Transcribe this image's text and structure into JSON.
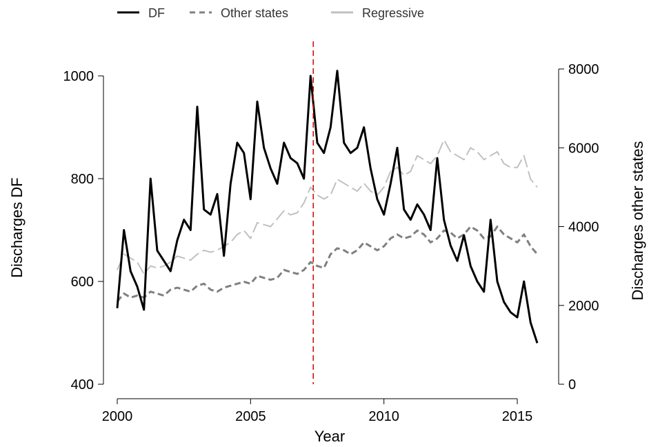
{
  "chart_data": {
    "type": "line",
    "xlabel": "Year",
    "ylabel_left": "Discharges DF",
    "ylabel_right": "Discharges other states",
    "xlim": [
      2000,
      2016
    ],
    "ylim_left": [
      400,
      1000
    ],
    "ylim_right": [
      0,
      8000
    ],
    "x_ticks": [
      2000,
      2005,
      2010,
      2015
    ],
    "y_left_ticks": [
      400,
      600,
      800,
      1000
    ],
    "y_right_ticks": [
      0,
      2000,
      4000,
      6000,
      8000
    ],
    "vertical_line": {
      "x": 2007.35,
      "color": "#cc0000",
      "style": "dashed"
    },
    "grid": false,
    "legend_position": "top",
    "series": [
      {
        "name": "DF",
        "axis": "left",
        "color": "#000000",
        "style": "solid",
        "x": [
          2000.0,
          2000.25,
          2000.5,
          2000.75,
          2001.0,
          2001.25,
          2001.5,
          2001.75,
          2002.0,
          2002.25,
          2002.5,
          2002.75,
          2003.0,
          2003.25,
          2003.5,
          2003.75,
          2004.0,
          2004.25,
          2004.5,
          2004.75,
          2005.0,
          2005.25,
          2005.5,
          2005.75,
          2006.0,
          2006.25,
          2006.5,
          2006.75,
          2007.0,
          2007.25,
          2007.5,
          2007.75,
          2008.0,
          2008.25,
          2008.5,
          2008.75,
          2009.0,
          2009.25,
          2009.5,
          2009.75,
          2010.0,
          2010.25,
          2010.5,
          2010.75,
          2011.0,
          2011.25,
          2011.5,
          2011.75,
          2012.0,
          2012.25,
          2012.5,
          2012.75,
          2013.0,
          2013.25,
          2013.5,
          2013.75,
          2014.0,
          2014.25,
          2014.5,
          2014.75,
          2015.0,
          2015.25,
          2015.5,
          2015.75
        ],
        "values": [
          548,
          700,
          620,
          590,
          545,
          800,
          660,
          640,
          620,
          680,
          720,
          700,
          940,
          740,
          730,
          770,
          650,
          790,
          870,
          850,
          760,
          950,
          860,
          820,
          790,
          870,
          840,
          830,
          800,
          1000,
          870,
          850,
          900,
          1010,
          870,
          850,
          860,
          900,
          820,
          760,
          730,
          790,
          860,
          740,
          720,
          750,
          730,
          700,
          840,
          720,
          670,
          640,
          690,
          630,
          600,
          580,
          720,
          600,
          560,
          540,
          530,
          600,
          520,
          480
        ]
      },
      {
        "name": "Other states",
        "axis": "right",
        "color": "#808080",
        "style": "dashed",
        "x": [
          2000.0,
          2000.25,
          2000.5,
          2000.75,
          2001.0,
          2001.25,
          2001.5,
          2001.75,
          2002.0,
          2002.25,
          2002.5,
          2002.75,
          2003.0,
          2003.25,
          2003.5,
          2003.75,
          2004.0,
          2004.25,
          2004.5,
          2004.75,
          2005.0,
          2005.25,
          2005.5,
          2005.75,
          2006.0,
          2006.25,
          2006.5,
          2006.75,
          2007.0,
          2007.25,
          2007.5,
          2007.75,
          2008.0,
          2008.25,
          2008.5,
          2008.75,
          2009.0,
          2009.25,
          2009.5,
          2009.75,
          2010.0,
          2010.25,
          2010.5,
          2010.75,
          2011.0,
          2011.25,
          2011.5,
          2011.75,
          2012.0,
          2012.25,
          2012.5,
          2012.75,
          2013.0,
          2013.25,
          2013.5,
          2013.75,
          2014.0,
          2014.25,
          2014.5,
          2014.75,
          2015.0,
          2015.25,
          2015.5,
          2015.75
        ],
        "values": [
          2100,
          2300,
          2200,
          2250,
          2200,
          2350,
          2300,
          2250,
          2400,
          2450,
          2400,
          2350,
          2500,
          2550,
          2400,
          2350,
          2450,
          2500,
          2550,
          2600,
          2550,
          2750,
          2700,
          2650,
          2700,
          2900,
          2850,
          2800,
          2900,
          3100,
          3000,
          2950,
          3300,
          3450,
          3400,
          3300,
          3400,
          3600,
          3500,
          3400,
          3500,
          3700,
          3800,
          3700,
          3750,
          3900,
          3800,
          3600,
          3700,
          3900,
          3850,
          3700,
          3800,
          4000,
          3900,
          3700,
          3750,
          4000,
          3800,
          3700,
          3600,
          3800,
          3500,
          3300
        ]
      },
      {
        "name": "Regressive",
        "axis": "right",
        "color": "#c0c0c0",
        "style": "solid",
        "x": [
          2000.0,
          2000.25,
          2000.5,
          2000.75,
          2001.0,
          2001.25,
          2001.5,
          2001.75,
          2002.0,
          2002.25,
          2002.5,
          2002.75,
          2003.0,
          2003.25,
          2003.5,
          2003.75,
          2004.0,
          2004.25,
          2004.5,
          2004.75,
          2005.0,
          2005.25,
          2005.5,
          2005.75,
          2006.0,
          2006.25,
          2006.5,
          2006.75,
          2007.0,
          2007.25,
          2007.5,
          2007.75,
          2008.0,
          2008.25,
          2008.5,
          2008.75,
          2009.0,
          2009.25,
          2009.5,
          2009.75,
          2010.0,
          2010.25,
          2010.5,
          2010.75,
          2011.0,
          2011.25,
          2011.5,
          2011.75,
          2012.0,
          2012.25,
          2012.5,
          2012.75,
          2013.0,
          2013.25,
          2013.5,
          2013.75,
          2014.0,
          2014.25,
          2014.5,
          2014.75,
          2015.0,
          2015.25,
          2015.5,
          2015.75
        ],
        "values": [
          2900,
          3300,
          3200,
          3100,
          2800,
          3000,
          2950,
          3000,
          3100,
          3250,
          3200,
          3150,
          3300,
          3400,
          3350,
          3400,
          3500,
          3600,
          3800,
          3900,
          3700,
          4100,
          4050,
          4000,
          4200,
          4400,
          4300,
          4350,
          4600,
          5000,
          4800,
          4700,
          4800,
          5200,
          5100,
          5000,
          4900,
          5100,
          4900,
          4800,
          5000,
          5400,
          5500,
          5300,
          5400,
          5800,
          5700,
          5600,
          5800,
          6200,
          5900,
          5800,
          5700,
          6000,
          5900,
          5700,
          5800,
          5900,
          5600,
          5500,
          5500,
          5800,
          5200,
          5000
        ]
      }
    ]
  }
}
